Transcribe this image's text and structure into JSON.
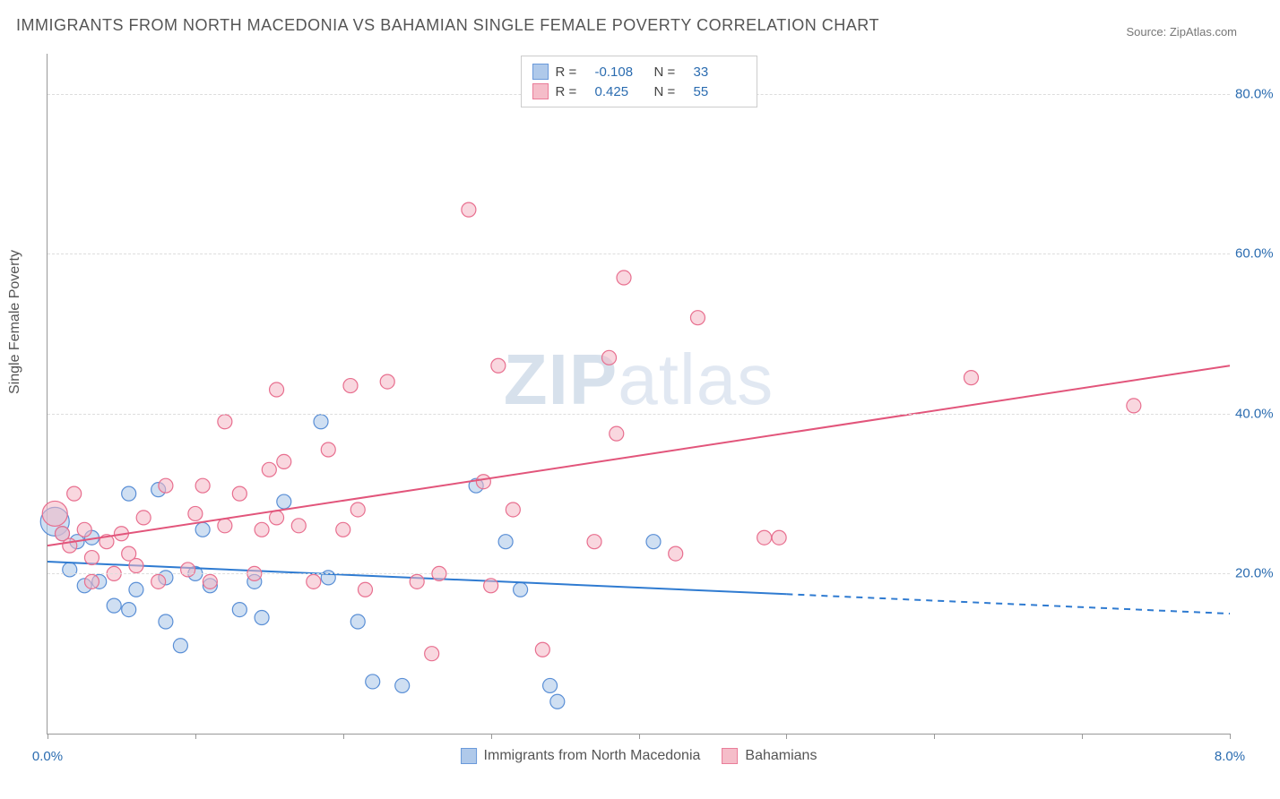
{
  "chart": {
    "type": "scatter",
    "title": "IMMIGRANTS FROM NORTH MACEDONIA VS BAHAMIAN SINGLE FEMALE POVERTY CORRELATION CHART",
    "source_label": "Source: ZipAtlas.com",
    "ylabel": "Single Female Poverty",
    "watermark": "ZIPatlas",
    "background_color": "#ffffff",
    "grid_color": "#dddddd",
    "axis_color": "#999999",
    "text_color": "#555555",
    "value_color": "#2b6cb0",
    "title_fontsize": 18,
    "label_fontsize": 16,
    "tick_fontsize": 15,
    "xlim": [
      0.0,
      8.0
    ],
    "ylim": [
      0.0,
      85.0
    ],
    "xticks": [
      0.0,
      1.0,
      2.0,
      3.0,
      4.0,
      5.0,
      6.0,
      7.0,
      8.0
    ],
    "xtick_labels": {
      "0": "0.0%",
      "8": "8.0%"
    },
    "yticks": [
      20.0,
      40.0,
      60.0,
      80.0
    ],
    "ytick_labels": [
      "20.0%",
      "40.0%",
      "60.0%",
      "80.0%"
    ],
    "series": [
      {
        "name": "Immigrants from North Macedonia",
        "short": "series_a",
        "fill_color": "#a7c4e8",
        "stroke_color": "#5a8fd6",
        "fill_opacity": 0.55,
        "marker_stroke_width": 1.2,
        "marker_radius": 8,
        "R": "-0.108",
        "N": "33",
        "trend": {
          "x1": 0.0,
          "y1": 21.5,
          "x2": 8.0,
          "y2": 15.0,
          "solid_until_x": 5.0,
          "color": "#2f7bd1",
          "width": 2
        },
        "points": [
          {
            "x": 0.05,
            "y": 26.5,
            "r": 16
          },
          {
            "x": 0.1,
            "y": 25.0
          },
          {
            "x": 0.15,
            "y": 20.5
          },
          {
            "x": 0.2,
            "y": 24.0
          },
          {
            "x": 0.25,
            "y": 18.5
          },
          {
            "x": 0.3,
            "y": 24.5
          },
          {
            "x": 0.35,
            "y": 19.0
          },
          {
            "x": 0.45,
            "y": 16.0
          },
          {
            "x": 0.55,
            "y": 30.0
          },
          {
            "x": 0.6,
            "y": 18.0
          },
          {
            "x": 0.75,
            "y": 30.5
          },
          {
            "x": 0.8,
            "y": 19.5
          },
          {
            "x": 0.8,
            "y": 14.0
          },
          {
            "x": 0.9,
            "y": 11.0
          },
          {
            "x": 1.0,
            "y": 20.0
          },
          {
            "x": 1.1,
            "y": 18.5
          },
          {
            "x": 1.3,
            "y": 15.5
          },
          {
            "x": 1.4,
            "y": 19.0
          },
          {
            "x": 1.45,
            "y": 14.5
          },
          {
            "x": 1.6,
            "y": 29.0
          },
          {
            "x": 1.85,
            "y": 39.0
          },
          {
            "x": 1.9,
            "y": 19.5
          },
          {
            "x": 2.1,
            "y": 14.0
          },
          {
            "x": 2.2,
            "y": 6.5
          },
          {
            "x": 2.4,
            "y": 6.0
          },
          {
            "x": 2.9,
            "y": 31.0
          },
          {
            "x": 3.1,
            "y": 24.0
          },
          {
            "x": 3.2,
            "y": 18.0
          },
          {
            "x": 3.4,
            "y": 6.0
          },
          {
            "x": 3.45,
            "y": 4.0
          },
          {
            "x": 4.1,
            "y": 24.0
          },
          {
            "x": 1.05,
            "y": 25.5
          },
          {
            "x": 0.55,
            "y": 15.5
          }
        ]
      },
      {
        "name": "Bahamians",
        "short": "series_b",
        "fill_color": "#f4b6c4",
        "stroke_color": "#e86f8f",
        "fill_opacity": 0.55,
        "marker_stroke_width": 1.2,
        "marker_radius": 8,
        "R": "0.425",
        "N": "55",
        "trend": {
          "x1": 0.0,
          "y1": 23.5,
          "x2": 8.0,
          "y2": 46.0,
          "solid_until_x": 8.0,
          "color": "#e2557b",
          "width": 2
        },
        "points": [
          {
            "x": 0.05,
            "y": 27.5,
            "r": 14
          },
          {
            "x": 0.1,
            "y": 25.0
          },
          {
            "x": 0.15,
            "y": 23.5
          },
          {
            "x": 0.18,
            "y": 30.0
          },
          {
            "x": 0.25,
            "y": 25.5
          },
          {
            "x": 0.3,
            "y": 22.0
          },
          {
            "x": 0.3,
            "y": 19.0
          },
          {
            "x": 0.45,
            "y": 20.0
          },
          {
            "x": 0.5,
            "y": 25.0
          },
          {
            "x": 0.6,
            "y": 21.0
          },
          {
            "x": 0.65,
            "y": 27.0
          },
          {
            "x": 0.75,
            "y": 19.0
          },
          {
            "x": 0.8,
            "y": 31.0
          },
          {
            "x": 0.95,
            "y": 20.5
          },
          {
            "x": 1.0,
            "y": 27.5
          },
          {
            "x": 1.05,
            "y": 31.0
          },
          {
            "x": 1.1,
            "y": 19.0
          },
          {
            "x": 1.2,
            "y": 26.0
          },
          {
            "x": 1.2,
            "y": 39.0
          },
          {
            "x": 1.3,
            "y": 30.0
          },
          {
            "x": 1.4,
            "y": 20.0
          },
          {
            "x": 1.45,
            "y": 25.5
          },
          {
            "x": 1.5,
            "y": 33.0
          },
          {
            "x": 1.55,
            "y": 43.0
          },
          {
            "x": 1.55,
            "y": 27.0
          },
          {
            "x": 1.6,
            "y": 34.0
          },
          {
            "x": 1.7,
            "y": 26.0
          },
          {
            "x": 1.8,
            "y": 19.0
          },
          {
            "x": 1.9,
            "y": 35.5
          },
          {
            "x": 2.05,
            "y": 43.5
          },
          {
            "x": 2.1,
            "y": 28.0
          },
          {
            "x": 2.15,
            "y": 18.0
          },
          {
            "x": 2.3,
            "y": 44.0
          },
          {
            "x": 2.5,
            "y": 19.0
          },
          {
            "x": 2.6,
            "y": 10.0
          },
          {
            "x": 2.65,
            "y": 20.0
          },
          {
            "x": 2.85,
            "y": 65.5
          },
          {
            "x": 2.95,
            "y": 31.5
          },
          {
            "x": 3.0,
            "y": 18.5
          },
          {
            "x": 3.05,
            "y": 46.0
          },
          {
            "x": 3.15,
            "y": 28.0
          },
          {
            "x": 3.35,
            "y": 10.5
          },
          {
            "x": 3.7,
            "y": 24.0
          },
          {
            "x": 3.8,
            "y": 47.0
          },
          {
            "x": 3.85,
            "y": 37.5
          },
          {
            "x": 3.9,
            "y": 57.0
          },
          {
            "x": 4.25,
            "y": 22.5
          },
          {
            "x": 4.4,
            "y": 52.0
          },
          {
            "x": 4.85,
            "y": 24.5
          },
          {
            "x": 4.95,
            "y": 24.5
          },
          {
            "x": 6.25,
            "y": 44.5
          },
          {
            "x": 7.35,
            "y": 41.0
          },
          {
            "x": 0.4,
            "y": 24.0
          },
          {
            "x": 0.55,
            "y": 22.5
          },
          {
            "x": 2.0,
            "y": 25.5
          }
        ]
      }
    ],
    "legend_bottom": [
      {
        "label": "Immigrants from North Macedonia",
        "series": "series_a"
      },
      {
        "label": "Bahamians",
        "series": "series_b"
      }
    ],
    "legend_top": [
      {
        "series": "series_a",
        "R_label": "R =",
        "N_label": "N ="
      },
      {
        "series": "series_b",
        "R_label": "R =",
        "N_label": "N ="
      }
    ]
  }
}
